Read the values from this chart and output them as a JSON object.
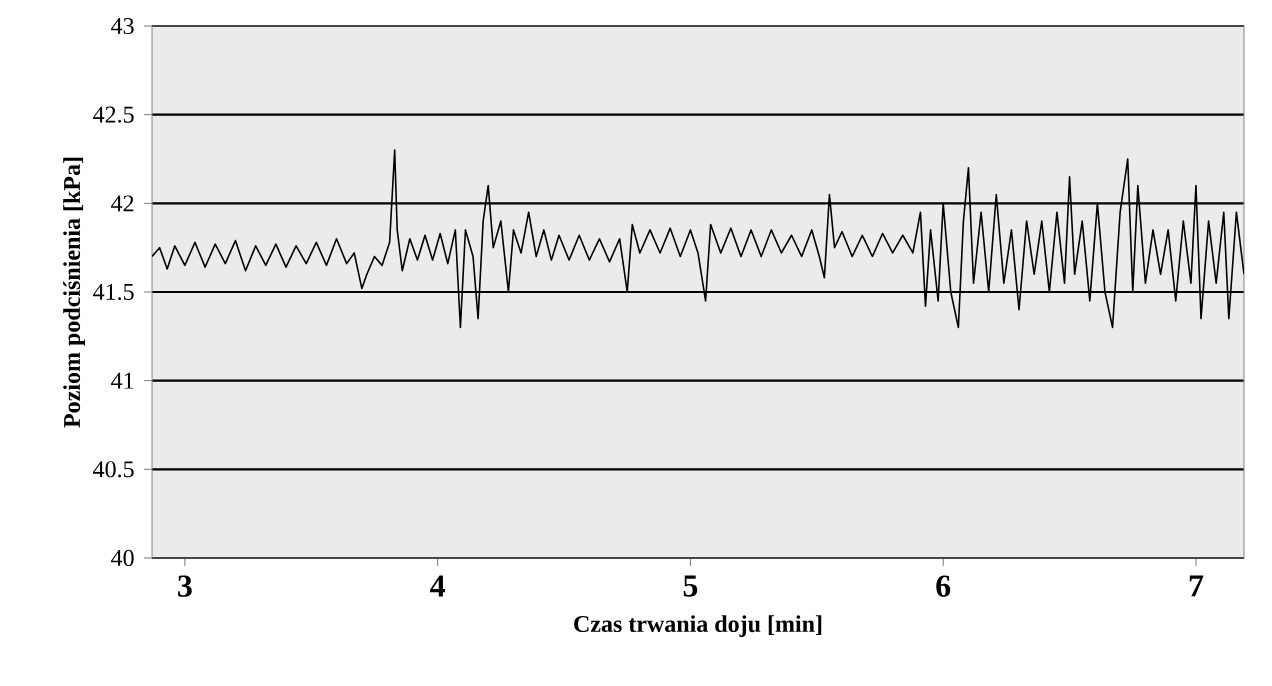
{
  "chart_data": {
    "type": "line",
    "xlabel": "Czas trwania doju [min]",
    "ylabel": "Poziom podciśnienia [kPa]",
    "xlim": [
      2.87,
      7.19
    ],
    "xticks": [
      3,
      4,
      5,
      6,
      7
    ],
    "ylim": [
      40,
      43
    ],
    "yticks": [
      40,
      40.5,
      41,
      41.5,
      42,
      42.5,
      43
    ],
    "grid": "y",
    "marker": "none",
    "line_style": "solid",
    "series": [
      {
        "color": "#000000",
        "x": [
          2.87,
          2.9,
          2.93,
          2.96,
          3.0,
          3.04,
          3.08,
          3.12,
          3.16,
          3.2,
          3.24,
          3.28,
          3.32,
          3.36,
          3.4,
          3.44,
          3.48,
          3.52,
          3.56,
          3.6,
          3.64,
          3.67,
          3.7,
          3.72,
          3.75,
          3.78,
          3.81,
          3.83,
          3.84,
          3.86,
          3.89,
          3.92,
          3.95,
          3.98,
          4.01,
          4.04,
          4.07,
          4.09,
          4.11,
          4.14,
          4.16,
          4.18,
          4.2,
          4.22,
          4.25,
          4.28,
          4.3,
          4.33,
          4.36,
          4.39,
          4.42,
          4.45,
          4.48,
          4.52,
          4.56,
          4.6,
          4.64,
          4.68,
          4.72,
          4.75,
          4.77,
          4.8,
          4.84,
          4.88,
          4.92,
          4.96,
          5.0,
          5.03,
          5.06,
          5.08,
          5.12,
          5.16,
          5.2,
          5.24,
          5.28,
          5.32,
          5.36,
          5.4,
          5.44,
          5.48,
          5.51,
          5.53,
          5.55,
          5.57,
          5.6,
          5.64,
          5.68,
          5.72,
          5.76,
          5.8,
          5.84,
          5.88,
          5.91,
          5.93,
          5.95,
          5.98,
          6.0,
          6.03,
          6.06,
          6.08,
          6.1,
          6.12,
          6.15,
          6.18,
          6.21,
          6.24,
          6.27,
          6.3,
          6.33,
          6.36,
          6.39,
          6.42,
          6.45,
          6.48,
          6.5,
          6.52,
          6.55,
          6.58,
          6.61,
          6.64,
          6.67,
          6.7,
          6.73,
          6.75,
          6.77,
          6.8,
          6.83,
          6.86,
          6.89,
          6.92,
          6.95,
          6.98,
          7.0,
          7.02,
          7.05,
          7.08,
          7.11,
          7.13,
          7.16,
          7.19
        ],
        "values": [
          41.7,
          41.75,
          41.63,
          41.76,
          41.65,
          41.78,
          41.64,
          41.77,
          41.66,
          41.79,
          41.62,
          41.76,
          41.65,
          41.77,
          41.64,
          41.76,
          41.66,
          41.78,
          41.65,
          41.8,
          41.66,
          41.72,
          41.52,
          41.6,
          41.7,
          41.65,
          41.78,
          42.3,
          41.85,
          41.62,
          41.8,
          41.68,
          41.82,
          41.68,
          41.83,
          41.66,
          41.85,
          41.3,
          41.85,
          41.7,
          41.35,
          41.9,
          42.1,
          41.75,
          41.9,
          41.5,
          41.85,
          41.72,
          41.95,
          41.7,
          41.85,
          41.68,
          41.82,
          41.68,
          41.82,
          41.68,
          41.8,
          41.67,
          41.8,
          41.5,
          41.88,
          41.72,
          41.85,
          41.72,
          41.86,
          41.7,
          41.85,
          41.72,
          41.45,
          41.88,
          41.72,
          41.86,
          41.7,
          41.85,
          41.7,
          41.85,
          41.72,
          41.82,
          41.7,
          41.85,
          41.7,
          41.58,
          42.05,
          41.75,
          41.84,
          41.7,
          41.82,
          41.7,
          41.83,
          41.72,
          41.82,
          41.72,
          41.95,
          41.42,
          41.85,
          41.45,
          42.0,
          41.5,
          41.3,
          41.9,
          42.2,
          41.55,
          41.95,
          41.5,
          42.05,
          41.55,
          41.85,
          41.4,
          41.9,
          41.6,
          41.9,
          41.5,
          41.95,
          41.55,
          42.15,
          41.6,
          41.9,
          41.45,
          42.0,
          41.5,
          41.3,
          41.95,
          42.25,
          41.5,
          42.1,
          41.55,
          41.85,
          41.6,
          41.85,
          41.45,
          41.9,
          41.55,
          42.1,
          41.35,
          41.9,
          41.55,
          41.95,
          41.35,
          41.95,
          41.6
        ]
      }
    ]
  }
}
